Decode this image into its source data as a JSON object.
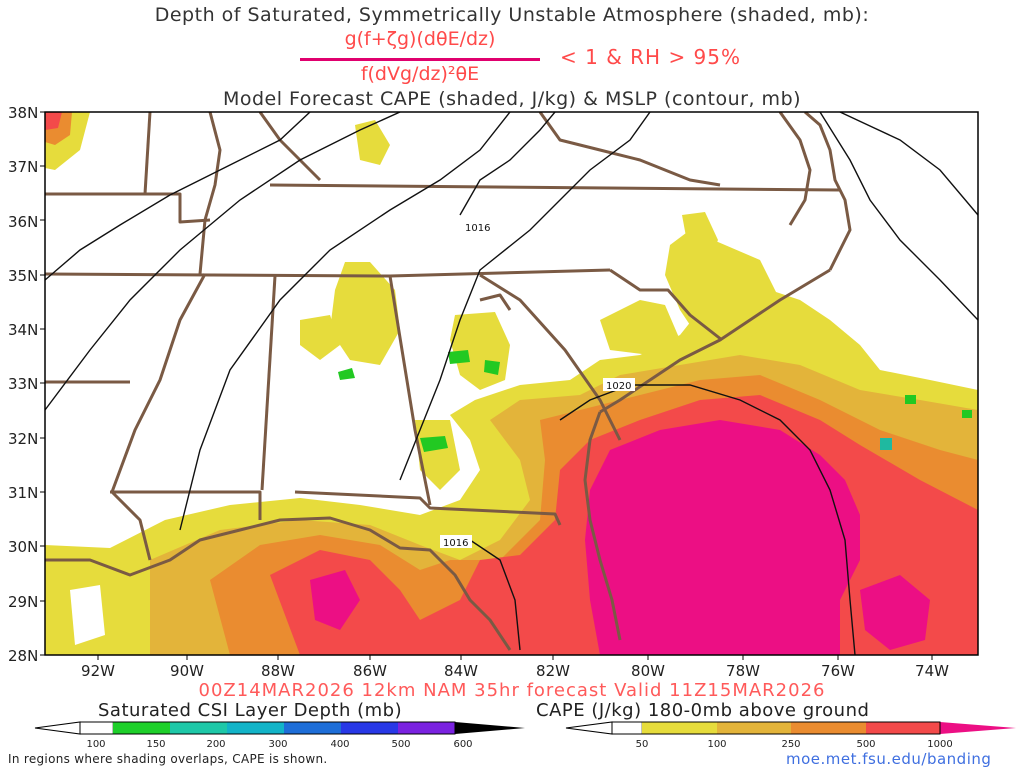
{
  "header": {
    "title": "Depth of Saturated, Symmetrically Unstable Atmosphere (shaded, mb):",
    "formula_numerator": "g(f+ζg)(dθE/dz)",
    "formula_denominator": "f(dVg/dz)²θE",
    "condition": "< 1 & RH > 95%",
    "subtitle": "Model Forecast CAPE (shaded, J/kg) & MSLP (contour, mb)"
  },
  "map": {
    "lat_labels": [
      "38N",
      "37N",
      "36N",
      "35N",
      "34N",
      "33N",
      "32N",
      "31N",
      "30N",
      "29N",
      "28N"
    ],
    "lon_labels": [
      "92W",
      "90W",
      "88W",
      "86W",
      "84W",
      "82W",
      "80W",
      "78W",
      "76W",
      "74W"
    ],
    "isobar_labels": [
      "1016",
      "1020",
      "1016"
    ],
    "colors": {
      "border": "#7a5a44",
      "cape_50": "#e6dc3c",
      "cape_100": "#e3b43a",
      "cape_250": "#ea8c30",
      "cape_500": "#f34a4a",
      "cape_1000": "#ec0f84",
      "csi_100": "#22c922"
    }
  },
  "footer": {
    "valid": "00Z14MAR2026 12km NAM 35hr forecast Valid 11Z15MAR2026",
    "csi_label": "Saturated CSI Layer Depth (mb)",
    "cape_label": "CAPE (J/kg) 180-0mb above ground",
    "csi_ticks": [
      "100",
      "150",
      "200",
      "300",
      "400",
      "500",
      "600"
    ],
    "cape_ticks": [
      "50",
      "100",
      "250",
      "500",
      "1000"
    ],
    "note": "In regions where shading overlaps, CAPE is shown.",
    "url": "moe.met.fsu.edu/banding"
  }
}
